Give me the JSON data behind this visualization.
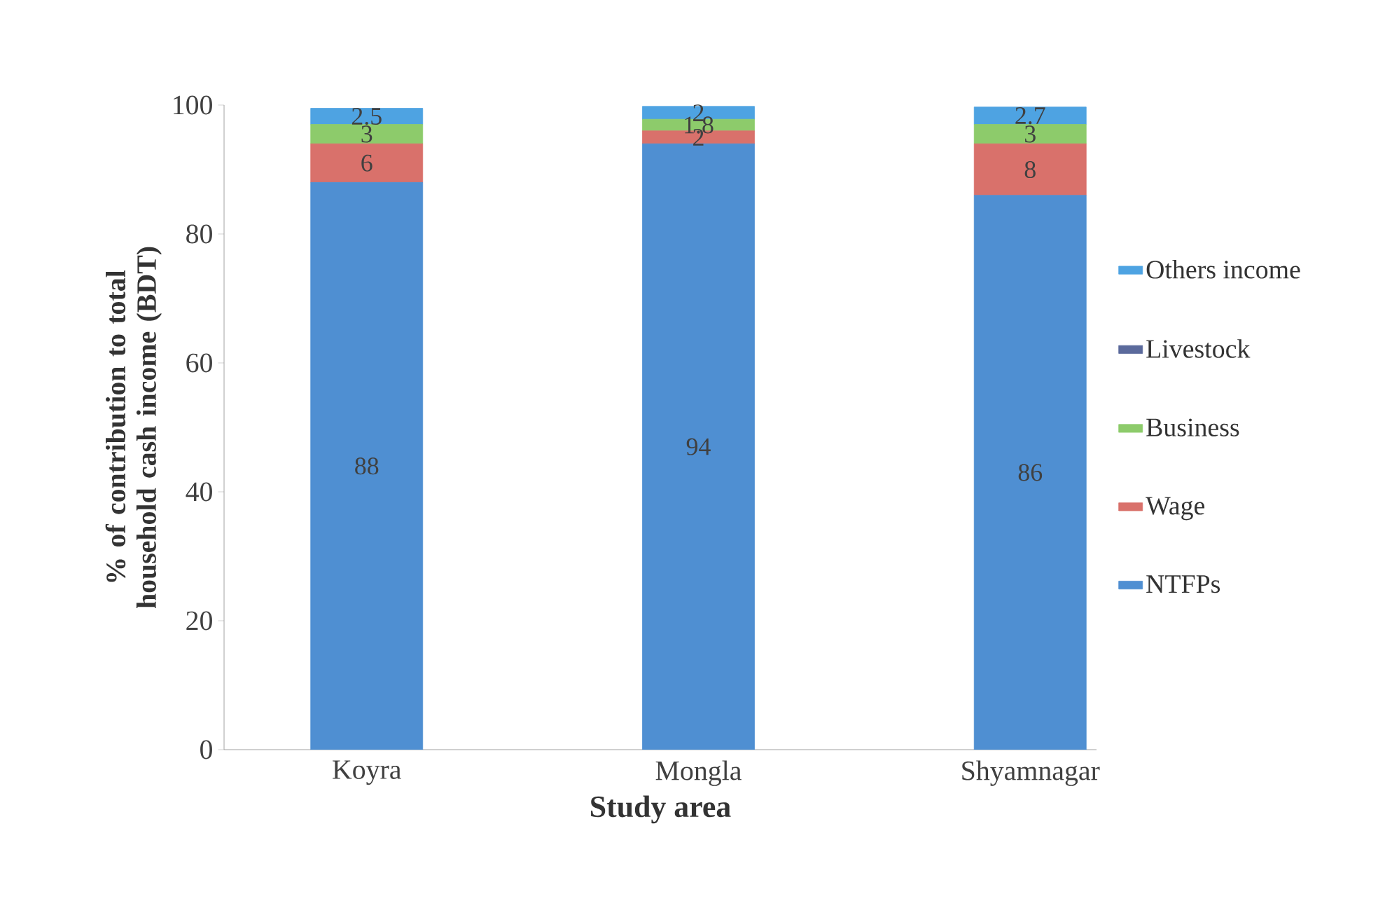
{
  "chart_data": {
    "type": "bar",
    "stacked": true,
    "xlabel": "Study area",
    "ylabel": "% of contribution to total  household cash income (BDT)",
    "categories": [
      "Koyra",
      "Mongla",
      "Shyamnagar"
    ],
    "series": [
      {
        "name": "NTFPs",
        "color": "#4f8fd2",
        "values": [
          88,
          94,
          86
        ]
      },
      {
        "name": "Wage",
        "color": "#d9716b",
        "values": [
          6,
          2,
          8
        ]
      },
      {
        "name": "Business",
        "color": "#8dcb6b",
        "values": [
          3,
          1.8,
          3
        ]
      },
      {
        "name": "Livestock",
        "color": "#5b6a9c",
        "values": [
          null,
          null,
          null
        ]
      },
      {
        "name": "Others income",
        "color": "#4ea3e2",
        "values": [
          2.5,
          2,
          2.7
        ]
      }
    ],
    "ylim": [
      0,
      100
    ],
    "yticks": [
      0,
      20,
      40,
      60,
      80,
      100
    ],
    "data_labels": true,
    "legend": "right",
    "grid": false
  }
}
